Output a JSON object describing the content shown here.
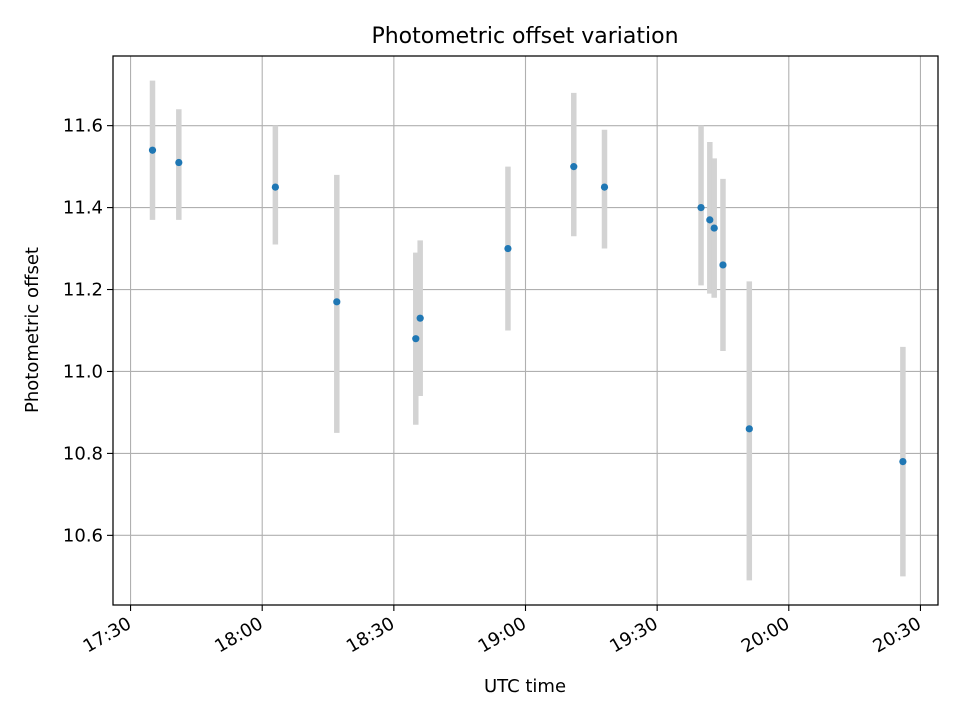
{
  "chart_data": {
    "type": "scatter",
    "title": "Photometric offset variation",
    "xlabel": "UTC time",
    "ylabel": "Photometric offset",
    "x_tick_labels": [
      "17:30",
      "18:00",
      "18:30",
      "19:00",
      "19:30",
      "20:00",
      "20:30"
    ],
    "x_ticks": [
      "17:30",
      "18:00",
      "18:30",
      "19:00",
      "19:30",
      "20:00",
      "20:30"
    ],
    "y_ticks": [
      10.6,
      10.8,
      11.0,
      11.2,
      11.4,
      11.6
    ],
    "y_tick_labels": [
      "10.6",
      "10.8",
      "11.0",
      "11.2",
      "11.4",
      "11.6"
    ],
    "xlim": [
      "17:26",
      "20:34"
    ],
    "ylim": [
      10.43,
      11.77
    ],
    "grid": true,
    "series": [
      {
        "points": [
          {
            "x": "17:35",
            "y": 11.54,
            "ylow": 11.37,
            "yhigh": 11.71
          },
          {
            "x": "17:41",
            "y": 11.51,
            "ylow": 11.37,
            "yhigh": 11.64
          },
          {
            "x": "18:03",
            "y": 11.45,
            "ylow": 11.31,
            "yhigh": 11.6
          },
          {
            "x": "18:17",
            "y": 11.17,
            "ylow": 10.85,
            "yhigh": 11.48
          },
          {
            "x": "18:35",
            "y": 11.08,
            "ylow": 10.87,
            "yhigh": 11.29
          },
          {
            "x": "18:36",
            "y": 11.13,
            "ylow": 10.94,
            "yhigh": 11.32
          },
          {
            "x": "18:56",
            "y": 11.3,
            "ylow": 11.1,
            "yhigh": 11.5
          },
          {
            "x": "19:11",
            "y": 11.5,
            "ylow": 11.33,
            "yhigh": 11.68
          },
          {
            "x": "19:18",
            "y": 11.45,
            "ylow": 11.3,
            "yhigh": 11.59
          },
          {
            "x": "19:40",
            "y": 11.4,
            "ylow": 11.21,
            "yhigh": 11.6
          },
          {
            "x": "19:42",
            "y": 11.37,
            "ylow": 11.19,
            "yhigh": 11.56
          },
          {
            "x": "19:43",
            "y": 11.35,
            "ylow": 11.18,
            "yhigh": 11.52
          },
          {
            "x": "19:45",
            "y": 11.26,
            "ylow": 11.05,
            "yhigh": 11.47
          },
          {
            "x": "19:51",
            "y": 10.86,
            "ylow": 10.49,
            "yhigh": 11.22
          },
          {
            "x": "20:26",
            "y": 10.78,
            "ylow": 10.5,
            "yhigh": 11.06
          }
        ]
      }
    ],
    "colors": {
      "point": "#1f77b4",
      "errorbar": "#d3d3d3",
      "grid": "#b0b0b0",
      "axes": "#000000"
    }
  }
}
